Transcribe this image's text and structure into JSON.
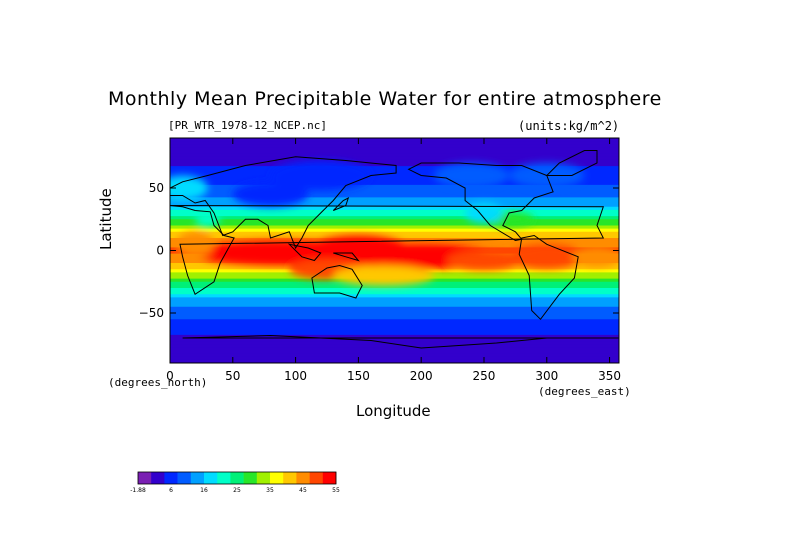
{
  "chart_data": {
    "type": "heatmap",
    "title": "Monthly Mean Precipitable Water for entire atmosphere",
    "file_label": "[PR_WTR_1978-12_NCEP.nc]",
    "units_label": "(units:kg/m^2)",
    "xlabel": "Longitude",
    "ylabel": "Latitude",
    "x_unit": "(degrees_east)",
    "y_unit": "(degrees_north)",
    "xlim": [
      0,
      357.5
    ],
    "ylim": [
      -90,
      90
    ],
    "x_ticks": [
      0,
      50,
      100,
      150,
      200,
      250,
      300,
      350
    ],
    "y_ticks": [
      50,
      0,
      -50
    ],
    "y_tick_labels": [
      "50",
      "0",
      "−50"
    ],
    "colorbar": {
      "levels": [
        "-1.88",
        "6",
        "16",
        "25",
        "35",
        "45",
        "55"
      ],
      "colors": [
        "#7a1fb3",
        "#3300cc",
        "#0028ff",
        "#005cff",
        "#00a0ff",
        "#00dcff",
        "#00ffc8",
        "#00f078",
        "#28e628",
        "#a0f000",
        "#ffff00",
        "#ffc800",
        "#ff8c00",
        "#ff4600",
        "#ff0000"
      ]
    },
    "zonal_profile": {
      "lat": [
        90,
        80,
        70,
        60,
        50,
        40,
        30,
        20,
        10,
        0,
        -10,
        -20,
        -30,
        -40,
        -50,
        -60,
        -70,
        -80,
        -90
      ],
      "value": [
        2,
        3,
        5,
        8,
        10,
        14,
        22,
        33,
        45,
        48,
        44,
        34,
        24,
        16,
        11,
        8,
        5,
        3,
        2
      ]
    }
  }
}
